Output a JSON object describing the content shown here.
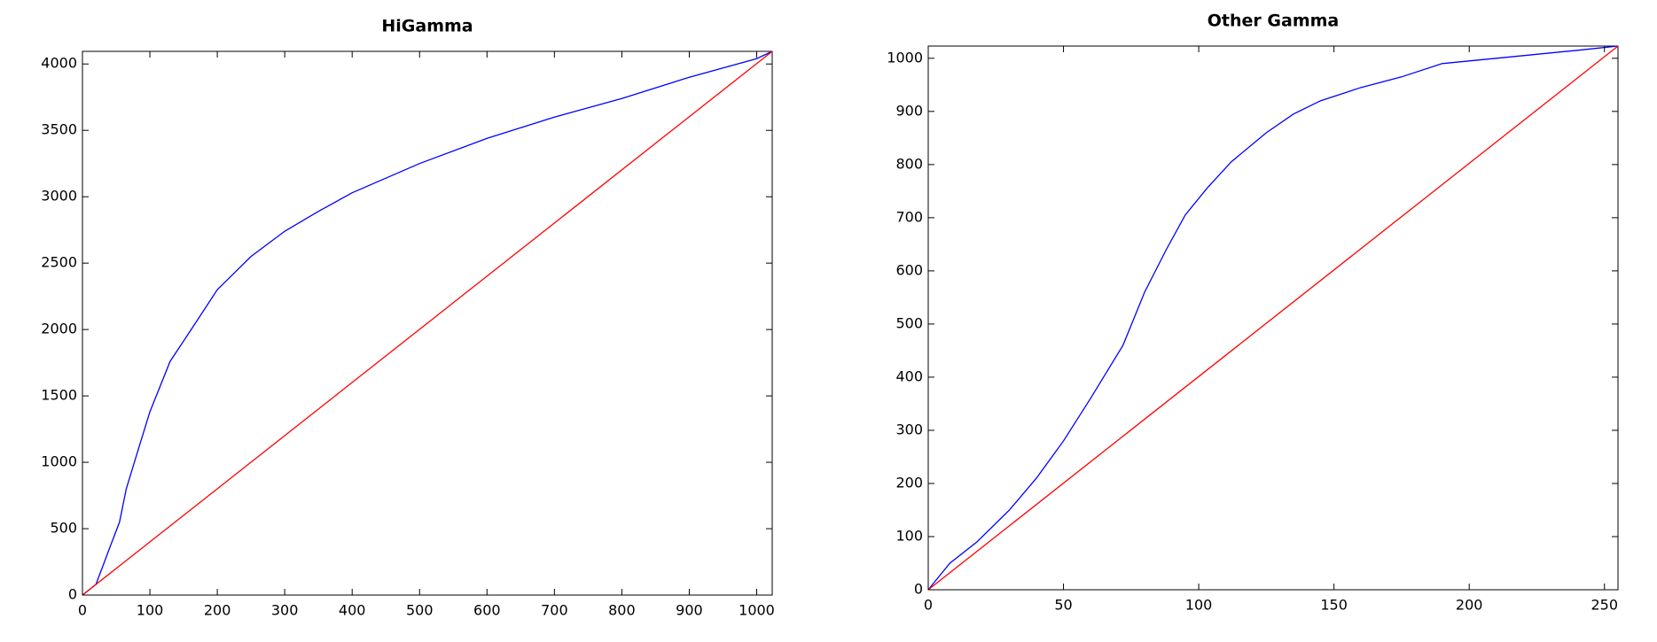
{
  "chart_data": [
    {
      "type": "line",
      "title": "HiGamma",
      "xlim": [
        0,
        1023
      ],
      "ylim": [
        0,
        4095
      ],
      "xticks": [
        0,
        100,
        200,
        300,
        400,
        500,
        600,
        700,
        800,
        900,
        1000
      ],
      "yticks": [
        0,
        500,
        1000,
        1500,
        2000,
        2500,
        3000,
        3500,
        4000
      ],
      "series": [
        {
          "color": "#0000ff",
          "x": [
            0,
            20,
            40,
            55,
            65,
            80,
            100,
            130,
            160,
            200,
            250,
            300,
            350,
            400,
            500,
            600,
            700,
            800,
            900,
            1000,
            1023
          ],
          "values": [
            0,
            80,
            350,
            550,
            800,
            1050,
            1380,
            1760,
            1990,
            2300,
            2550,
            2740,
            2890,
            3030,
            3250,
            3440,
            3600,
            3740,
            3900,
            4040,
            4095
          ]
        },
        {
          "color": "#ff0000",
          "x": [
            0,
            1023
          ],
          "values": [
            0,
            4095
          ]
        }
      ]
    },
    {
      "type": "line",
      "title": "Other Gamma",
      "xlim": [
        0,
        255
      ],
      "ylim": [
        0,
        1023
      ],
      "xticks": [
        0,
        50,
        100,
        150,
        200,
        250
      ],
      "yticks": [
        0,
        100,
        200,
        300,
        400,
        500,
        600,
        700,
        800,
        900,
        1000
      ],
      "series": [
        {
          "color": "#0000ff",
          "x": [
            0,
            8,
            18,
            30,
            40,
            50,
            60,
            72,
            80,
            88,
            95,
            103,
            112,
            125,
            135,
            145,
            160,
            175,
            190,
            200,
            220,
            240,
            255
          ],
          "values": [
            0,
            50,
            90,
            150,
            210,
            280,
            360,
            460,
            560,
            640,
            705,
            755,
            805,
            860,
            895,
            920,
            945,
            965,
            990,
            995,
            1005,
            1015,
            1023
          ]
        },
        {
          "color": "#ff0000",
          "x": [
            0,
            255
          ],
          "values": [
            0,
            1023
          ]
        }
      ]
    }
  ]
}
